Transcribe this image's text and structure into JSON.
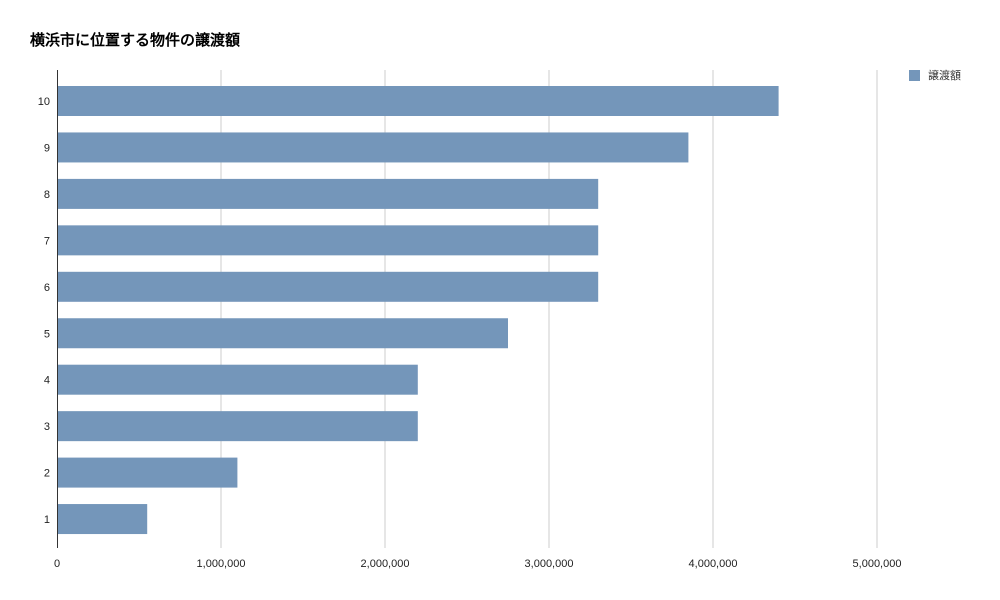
{
  "chart_data": {
    "type": "bar",
    "orientation": "horizontal",
    "title": "横浜市に位置する物件の譲渡額",
    "categories": [
      "10",
      "9",
      "8",
      "7",
      "6",
      "5",
      "4",
      "3",
      "2",
      "1"
    ],
    "series": [
      {
        "name": "譲渡額",
        "color": "#7496ba",
        "values": [
          4400000,
          3850000,
          3300000,
          3300000,
          3300000,
          2750000,
          2200000,
          2200000,
          1100000,
          550000
        ]
      }
    ],
    "xlim": [
      0,
      5500000
    ],
    "xticks": [
      0,
      1000000,
      2000000,
      3000000,
      4000000,
      5000000
    ],
    "xtick_labels": [
      "0",
      "1,000,000",
      "2,000,000",
      "3,000,000",
      "4,000,000",
      "5,000,000"
    ],
    "xlabel": "",
    "ylabel": "",
    "grid": true,
    "legend_position": "top-right"
  }
}
